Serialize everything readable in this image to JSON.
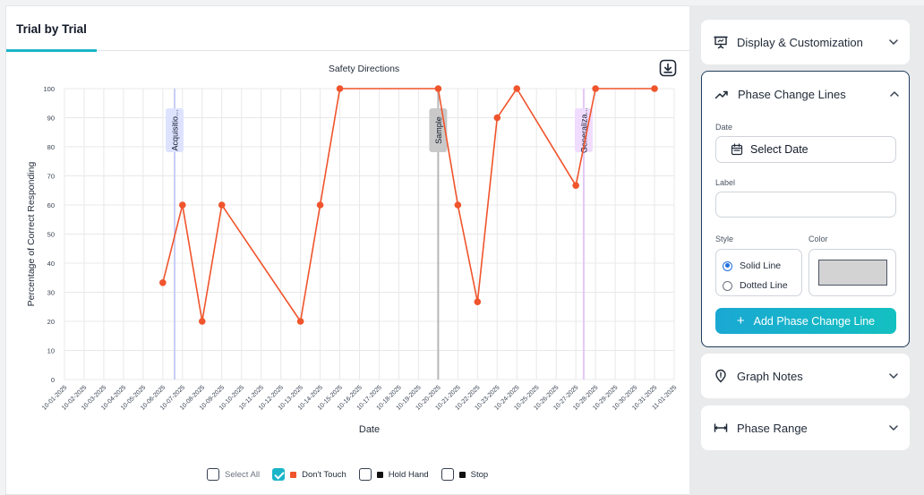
{
  "tabs": [
    {
      "label": "Trial by Trial"
    }
  ],
  "chart_data": {
    "type": "line",
    "title": "Safety Directions",
    "xlabel": "Date",
    "ylabel": "Percentage of Correct Responding",
    "ylim": [
      0,
      100
    ],
    "yticks": [
      0,
      10,
      20,
      30,
      40,
      50,
      60,
      70,
      80,
      90,
      100
    ],
    "categories": [
      "10-01-2025",
      "10-02-2025",
      "10-03-2025",
      "10-04-2025",
      "10-05-2025",
      "10-06-2025",
      "10-07-2025",
      "10-08-2025",
      "10-09-2025",
      "10-10-2025",
      "10-11-2025",
      "10-12-2025",
      "10-13-2025",
      "10-14-2025",
      "10-15-2025",
      "10-16-2025",
      "10-17-2025",
      "10-18-2025",
      "10-19-2025",
      "10-20-2025",
      "10-21-2025",
      "10-22-2025",
      "10-23-2025",
      "10-24-2025",
      "10-25-2025",
      "10-26-2025",
      "10-27-2025",
      "10-28-2025",
      "10-29-2025",
      "10-30-2025",
      "10-31-2025",
      "11-01-2025"
    ],
    "grid": true,
    "series": [
      {
        "name": "Don't Touch",
        "color": "#f0542c",
        "points": [
          {
            "x": "10-06-2025",
            "y": 33.3
          },
          {
            "x": "10-07-2025",
            "y": 60
          },
          {
            "x": "10-08-2025",
            "y": 20
          },
          {
            "x": "10-09-2025",
            "y": 60
          },
          {
            "x": "10-13-2025",
            "y": 20
          },
          {
            "x": "10-14-2025",
            "y": 60
          },
          {
            "x": "10-15-2025",
            "y": 100
          },
          {
            "x": "10-20-2025",
            "y": 100
          },
          {
            "x": "10-21-2025",
            "y": 60
          },
          {
            "x": "10-22-2025",
            "y": 26.7
          },
          {
            "x": "10-23-2025",
            "y": 90
          },
          {
            "x": "10-24-2025",
            "y": 100
          },
          {
            "x": "10-27-2025",
            "y": 66.7
          },
          {
            "x": "10-28-2025",
            "y": 100
          },
          {
            "x": "10-31-2025",
            "y": 100
          }
        ]
      }
    ],
    "phase_lines": [
      {
        "label": "Acquisitio...",
        "date": "10-07-2025",
        "offset": -0.4,
        "line_color": "#c9cdf5",
        "box_color": "#dde3ff"
      },
      {
        "label": "Sample",
        "date": "10-20-2025",
        "offset": 0,
        "line_color": "#b7b7b7",
        "box_color": "#c9c9c9"
      },
      {
        "label": "Generaliza...",
        "date": "10-27-2025",
        "offset": 0.4,
        "line_color": "#e3c8f5",
        "box_color": "#f0dcff"
      }
    ]
  },
  "legend": {
    "select_all": "Select All",
    "items": [
      {
        "label": "Don't Touch",
        "checked": true,
        "color": "#f0542c"
      },
      {
        "label": "Hold Hand",
        "checked": false,
        "color": "#111111"
      },
      {
        "label": "Stop",
        "checked": false,
        "color": "#111111"
      }
    ]
  },
  "sidebar": {
    "display": {
      "title": "Display & Customization"
    },
    "phase": {
      "title": "Phase Change Lines",
      "date_label": "Date",
      "date_placeholder": "Select Date",
      "label_label": "Label",
      "label_value": "",
      "style_label": "Style",
      "color_label": "Color",
      "solid": "Solid Line",
      "dotted": "Dotted Line",
      "selected_color": "#d3d3d3",
      "add_button": "Add Phase Change Line"
    },
    "notes": {
      "title": "Graph Notes"
    },
    "range": {
      "title": "Phase Range"
    }
  }
}
